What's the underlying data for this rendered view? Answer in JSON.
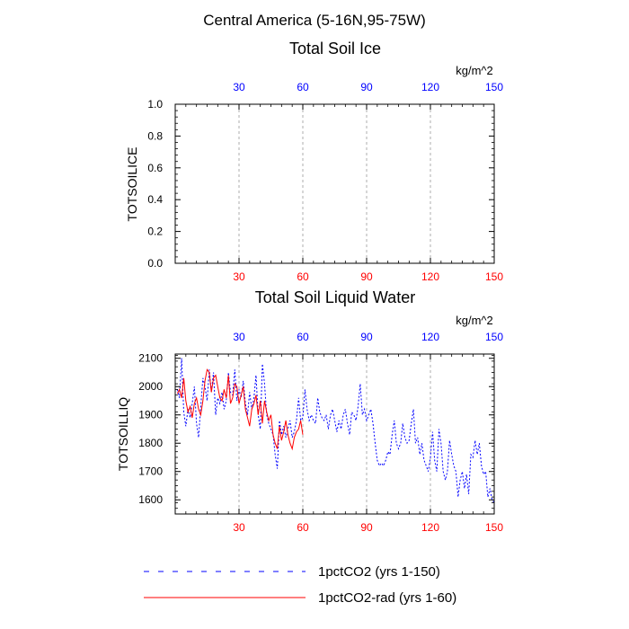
{
  "suptitle": "Central America (5-16N,95-75W)",
  "colors": {
    "bottom_ticks": "#ff0000",
    "top_ticks": "#0000ff",
    "series1": "#0000ff",
    "series2": "#ff0000",
    "grid": "#999999"
  },
  "legend": [
    {
      "label": "1pctCO2 (yrs 1-150)",
      "color": "#0000ff",
      "style": "dashed"
    },
    {
      "label": "1pctCO2-rad (yrs 1-60)",
      "color": "#ff0000",
      "style": "solid"
    }
  ],
  "chart_data": [
    {
      "type": "line",
      "title": "Total Soil Ice",
      "ylabel": "TOTSOILICE",
      "unit": "kg/m^2",
      "xlim": [
        0,
        150
      ],
      "ylim": [
        0,
        1
      ],
      "xticks": [
        30,
        60,
        90,
        120,
        150
      ],
      "yticks": [
        0.0,
        0.2,
        0.4,
        0.6,
        0.8,
        1.0
      ],
      "ytick_labels": [
        "0.0",
        "0.2",
        "0.4",
        "0.6",
        "0.8",
        "1.0"
      ],
      "grid_x": true,
      "series": []
    },
    {
      "type": "line",
      "title": "Total Soil Liquid Water",
      "ylabel": "TOTSOILLIQ",
      "unit": "kg/m^2",
      "xlim": [
        0,
        150
      ],
      "ylim": [
        1550,
        2115
      ],
      "xticks": [
        30,
        60,
        90,
        120,
        150
      ],
      "yticks": [
        1600,
        1700,
        1800,
        1900,
        2000,
        2100
      ],
      "ytick_labels": [
        "1600",
        "1700",
        "1800",
        "1900",
        "2000",
        "2100"
      ],
      "grid_x": true,
      "series": [
        {
          "name": "1pctCO2 (yrs 1-150)",
          "x_start": 1,
          "values": [
            1990,
            1960,
            2100,
            1910,
            1860,
            1920,
            1890,
            1940,
            2000,
            1870,
            1820,
            1930,
            2030,
            2000,
            1950,
            2060,
            1980,
            2050,
            1900,
            1960,
            1940,
            1980,
            1920,
            1950,
            2050,
            1980,
            1970,
            2060,
            1950,
            1990,
            1960,
            2020,
            1940,
            1900,
            1980,
            1920,
            1960,
            2040,
            1900,
            1850,
            2080,
            2010,
            1900,
            1870,
            1850,
            1830,
            1760,
            1710,
            1880,
            1830,
            1860,
            1820,
            1850,
            1880,
            1820,
            1840,
            1880,
            1960,
            1880,
            1890,
            1990,
            1920,
            1880,
            1900,
            1880,
            1870,
            1960,
            1910,
            1890,
            1880,
            1900,
            1850,
            1900,
            1920,
            1880,
            1840,
            1880,
            1850,
            1900,
            1920,
            1870,
            1830,
            1910,
            1900,
            1880,
            1930,
            2010,
            1900,
            1920,
            1880,
            1900,
            1920,
            1870,
            1800,
            1740,
            1720,
            1730,
            1720,
            1740,
            1770,
            1760,
            1830,
            1880,
            1800,
            1780,
            1800,
            1870,
            1820,
            1800,
            1810,
            1870,
            1920,
            1800,
            1820,
            1760,
            1800,
            1740,
            1720,
            1700,
            1750,
            1840,
            1740,
            1700,
            1850,
            1800,
            1700,
            1670,
            1700,
            1810,
            1760,
            1720,
            1700,
            1610,
            1670,
            1700,
            1640,
            1690,
            1620,
            1760,
            1750,
            1810,
            1760,
            1800,
            1720,
            1690,
            1700,
            1610,
            1640,
            1600,
            1590
          ]
        },
        {
          "name": "1pctCO2-rad (yrs 1-60)",
          "x_start": 1,
          "values": [
            1975,
            1990,
            1960,
            2030,
            1950,
            1910,
            1930,
            1890,
            1940,
            1960,
            1920,
            1900,
            1950,
            2020,
            2060,
            2050,
            1980,
            2030,
            2040,
            2000,
            1960,
            1950,
            1990,
            1960,
            2040,
            1940,
            1960,
            2010,
            2000,
            1940,
            1970,
            2000,
            1920,
            1890,
            1860,
            1920,
            1940,
            1970,
            1900,
            1950,
            1870,
            1950,
            1910,
            1880,
            1900,
            1830,
            1800,
            1780,
            1860,
            1810,
            1840,
            1880,
            1830,
            1800,
            1780,
            1820,
            1840,
            1850,
            1880,
            1830
          ]
        }
      ]
    }
  ]
}
